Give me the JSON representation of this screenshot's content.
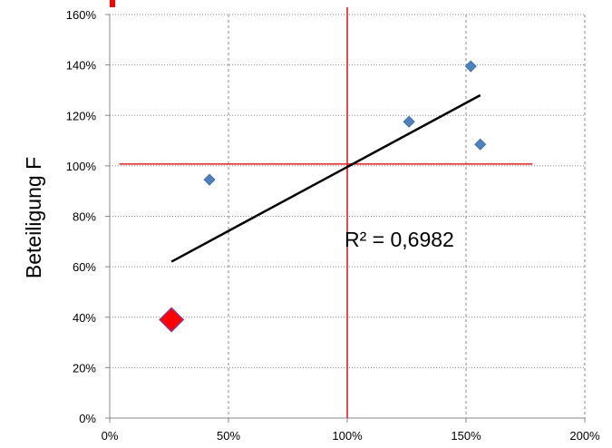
{
  "chart_data": {
    "type": "scatter",
    "title": "",
    "xlabel": "",
    "ylabel": "Beteiligung F",
    "xlim": [
      0,
      2.0
    ],
    "ylim": [
      0,
      1.6
    ],
    "x_ticks": [
      0,
      0.5,
      1.0,
      1.5,
      2.0
    ],
    "x_tick_labels": [
      "0%",
      "50%",
      "100%",
      "150%",
      "200%"
    ],
    "y_ticks": [
      0,
      0.2,
      0.4,
      0.6,
      0.8,
      1.0,
      1.2,
      1.4,
      1.6
    ],
    "y_tick_labels": [
      "0%",
      "20%",
      "40%",
      "60%",
      "80%",
      "100%",
      "120%",
      "140%",
      "160%"
    ],
    "grid": "dotted, vertical and horizontal",
    "marker_color": "#4f81bd",
    "points": [
      {
        "x": 0.42,
        "y": 0.945
      },
      {
        "x": 1.26,
        "y": 1.175
      },
      {
        "x": 1.52,
        "y": 1.395
      },
      {
        "x": 1.56,
        "y": 1.085
      }
    ],
    "highlight_point": {
      "x": 0.26,
      "y": 0.39,
      "color": "#ff0000"
    },
    "trendline": {
      "x1": 0.26,
      "y1": 0.62,
      "x2": 1.56,
      "y2": 1.28,
      "color": "#000000"
    },
    "reference_lines": [
      {
        "orientation": "vertical",
        "x": 1.0,
        "color": "#e02020"
      },
      {
        "orientation": "horizontal",
        "y": 1.0,
        "x_start": 0.04,
        "x_end": 1.78,
        "color": "#e02020"
      }
    ],
    "annotation": "R² = 0,6982",
    "annotation_pos": {
      "x": 1.0,
      "y": 0.68
    }
  }
}
